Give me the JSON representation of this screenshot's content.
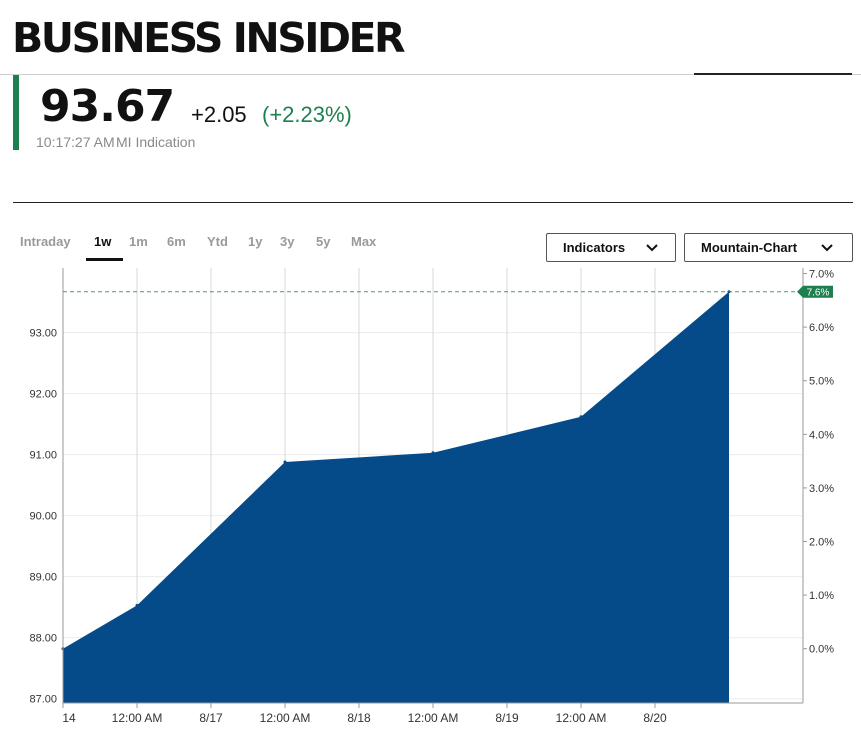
{
  "header": {
    "logo_text": "BUSINESS INSIDER"
  },
  "quote": {
    "price": "93.67",
    "change": "+2.05",
    "change_pct": "(+2.23%)",
    "time": "10:17:27 AM",
    "source": "MI Indication"
  },
  "range_tabs": [
    "Intraday",
    "1w",
    "1m",
    "6m",
    "Ytd",
    "1y",
    "3y",
    "5y",
    "Max"
  ],
  "active_tab": "1w",
  "controls": {
    "indicators_label": "Indicators",
    "chart_type_label": "Mountain-Chart"
  },
  "colors": {
    "accent_green": "#1e7f4f",
    "area_fill": "#054a89",
    "grid": "#e6e6e6"
  },
  "chart_data": {
    "type": "area",
    "title": "",
    "xlabel": "",
    "ylabel": "",
    "x_tick_labels": [
      "14",
      "12:00 AM",
      "8/17",
      "12:00 AM",
      "8/18",
      "12:00 AM",
      "8/19",
      "12:00 AM",
      "8/20"
    ],
    "y_left_ticks": [
      "87.00",
      "88.00",
      "89.00",
      "90.00",
      "91.00",
      "92.00",
      "93.00"
    ],
    "y_right_ticks": [
      "0.0%",
      "1.0%",
      "2.0%",
      "3.0%",
      "4.0%",
      "5.0%",
      "6.0%",
      "7.0%"
    ],
    "ylim": [
      86.93,
      93.96
    ],
    "series": [
      {
        "values": [
          {
            "x": "8/14 12:00 PM",
            "y": 87.82
          },
          {
            "x": "8/15 12:00 AM",
            "y": 88.53
          },
          {
            "x": "8/16 12:00 AM",
            "y": 90.88
          },
          {
            "x": "8/17 12:00 AM",
            "y": 91.03
          },
          {
            "x": "8/18 12:00 AM",
            "y": 91.62
          },
          {
            "x": "8/19 10:17 AM",
            "y": 93.67
          }
        ]
      }
    ],
    "last_value_label": "7.6%"
  }
}
